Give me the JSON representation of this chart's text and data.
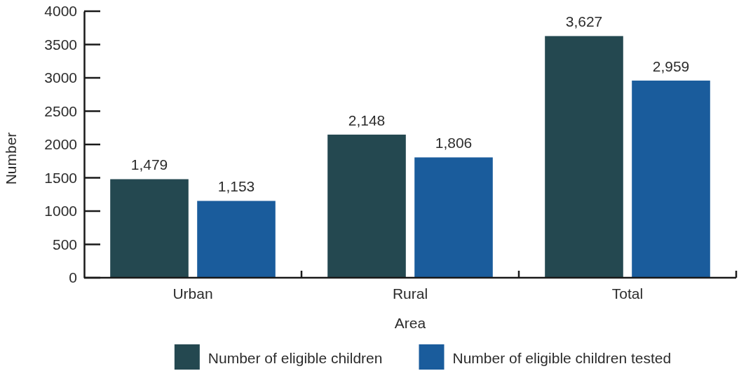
{
  "chart_data": {
    "type": "bar",
    "xlabel": "Area",
    "ylabel": "Number",
    "categories": [
      "Urban",
      "Rural",
      "Total"
    ],
    "series": [
      {
        "name": "Number of eligible children",
        "color": "#244850",
        "values": [
          1479,
          2148,
          3627
        ],
        "value_labels": [
          "1,479",
          "2,148",
          "3,627"
        ]
      },
      {
        "name": "Number of eligible children tested",
        "color": "#1a5c9c",
        "values": [
          1153,
          1806,
          2959
        ],
        "value_labels": [
          "1,153",
          "1,806",
          "2,959"
        ]
      }
    ],
    "ylim": [
      0,
      4000
    ],
    "yticks": [
      0,
      500,
      1000,
      1500,
      2000,
      2500,
      3000,
      3500,
      4000
    ],
    "legend": "bottom"
  }
}
